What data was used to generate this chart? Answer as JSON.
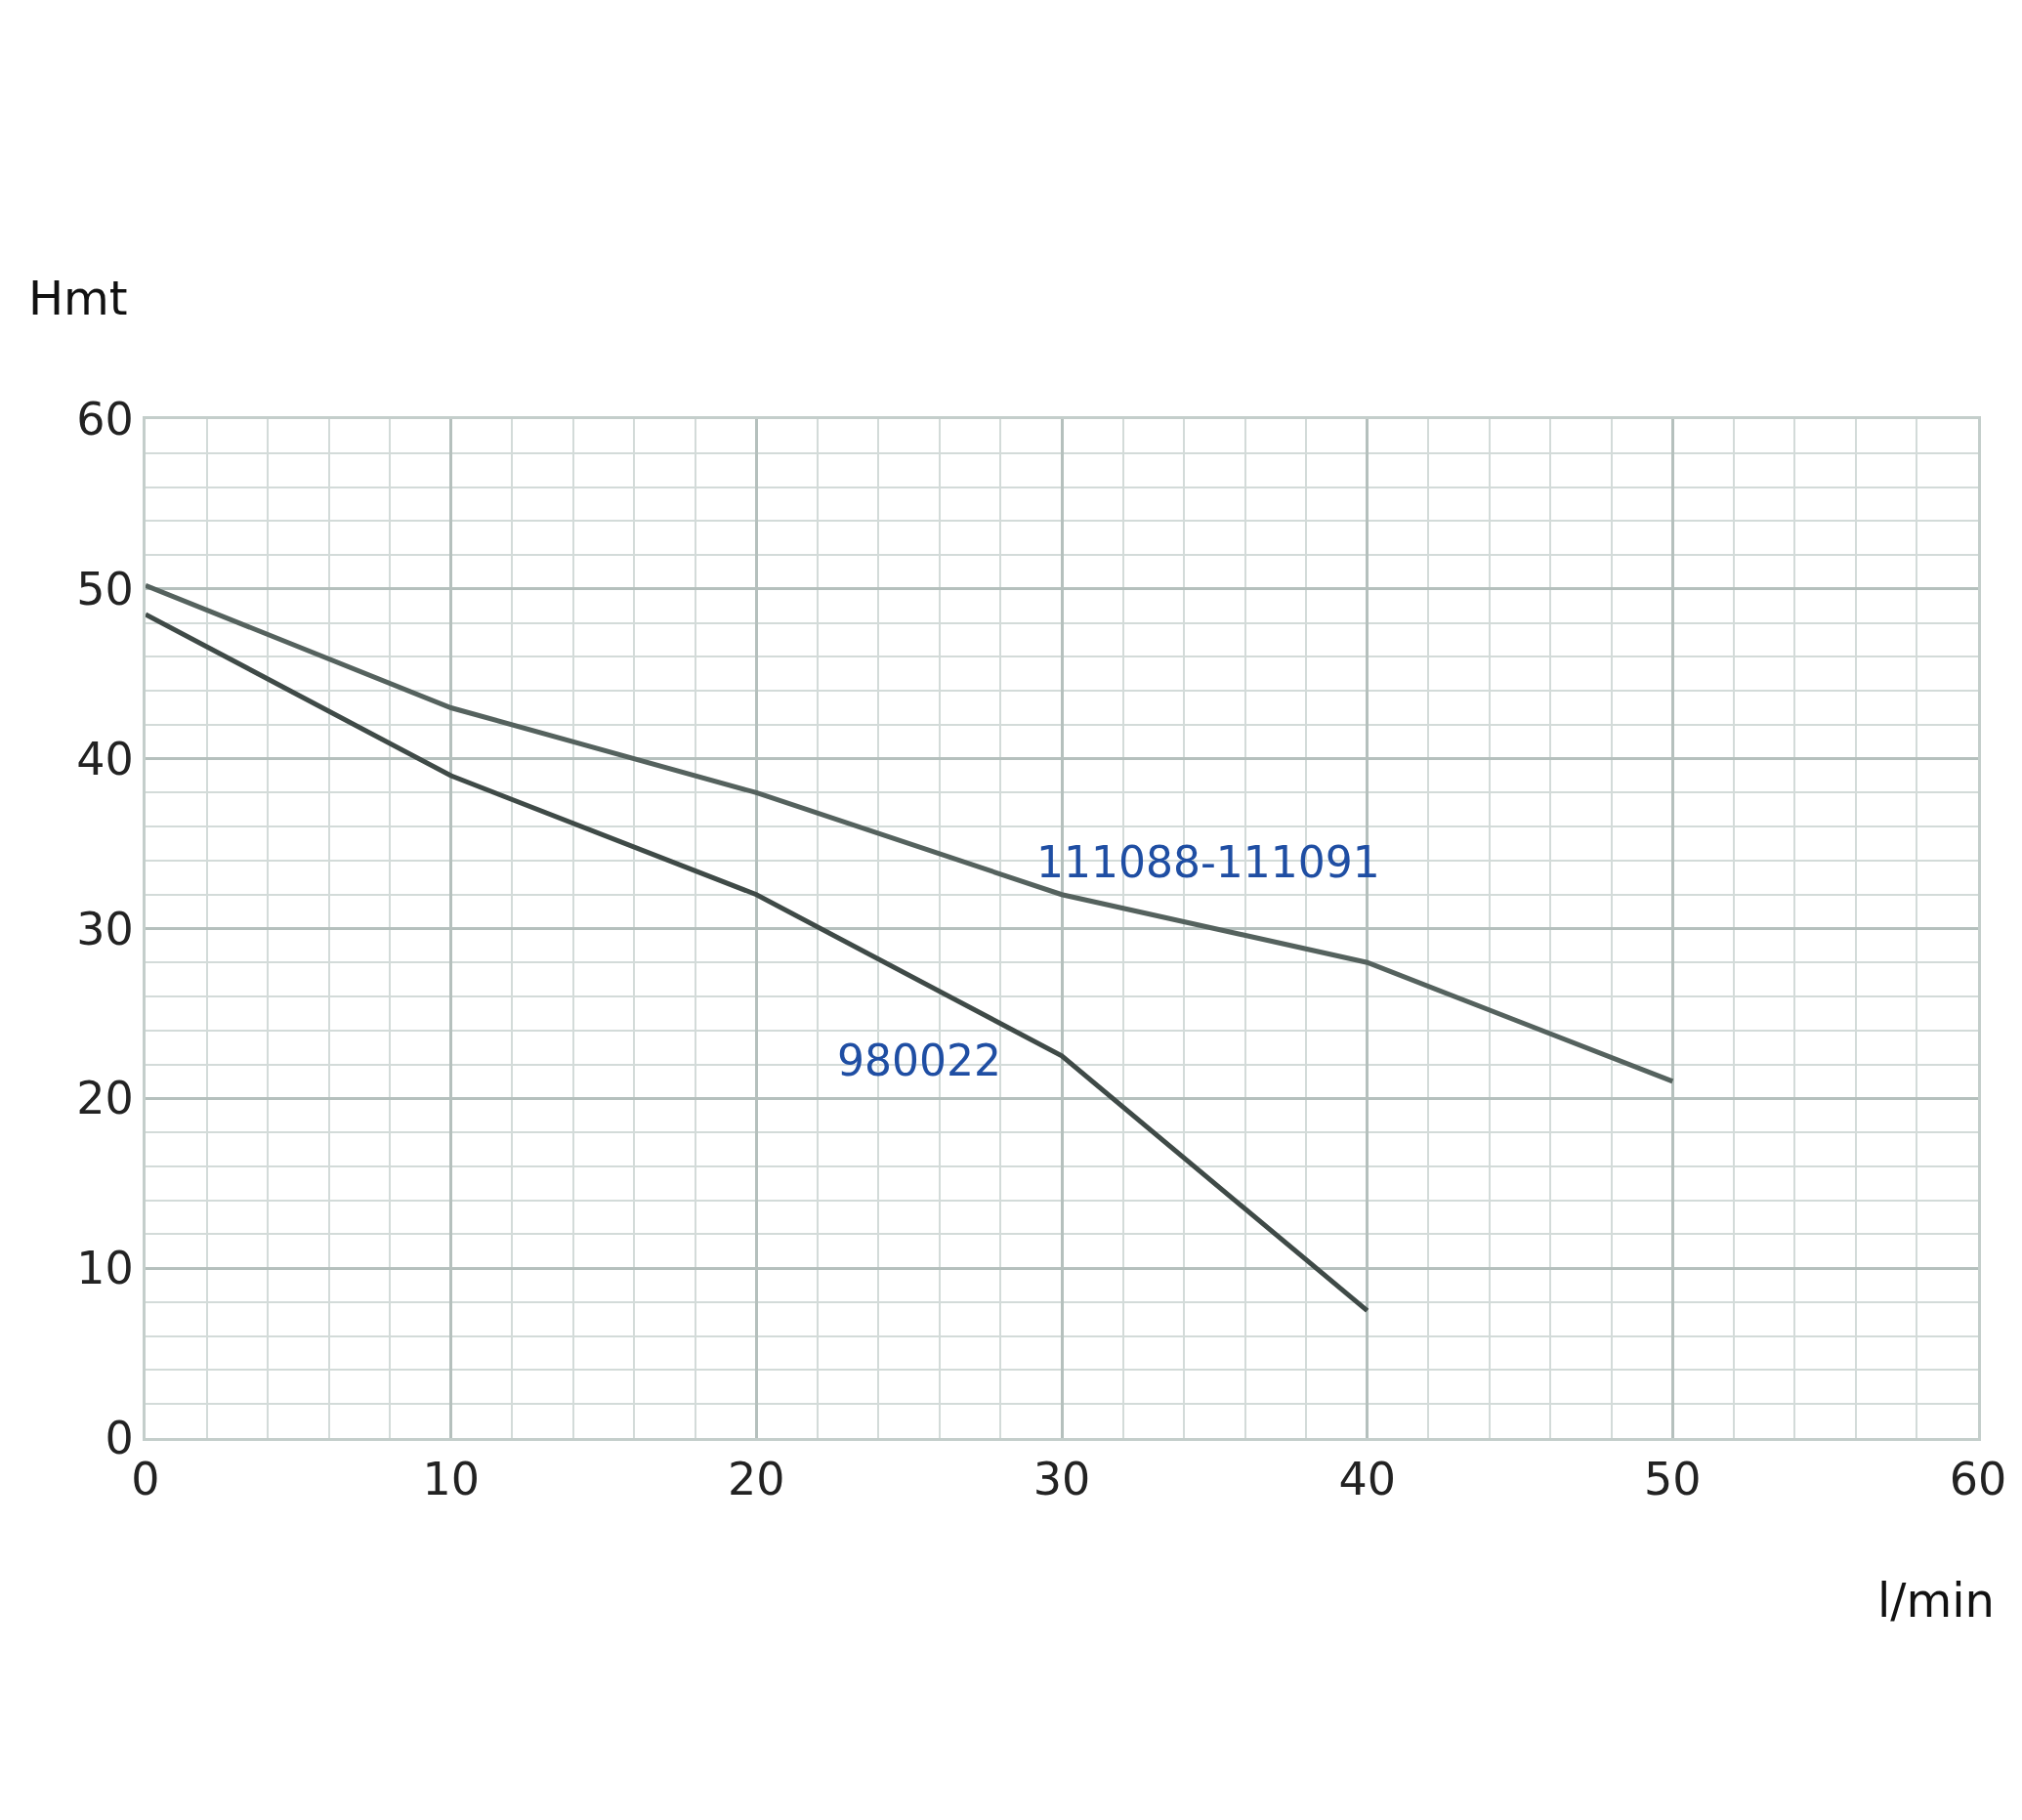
{
  "chart_data": {
    "type": "line",
    "xlabel": "l/min",
    "ylabel": "Hmt",
    "xlim": [
      0,
      60
    ],
    "xticks": [
      0,
      10,
      20,
      30,
      40,
      50,
      60
    ],
    "ylim": [
      0,
      60
    ],
    "yticks": [
      0,
      10,
      20,
      30,
      40,
      50,
      60
    ],
    "grid": true,
    "marker": "none",
    "line_style": "solid",
    "series": [
      {
        "name": "111088-111091",
        "color": "#55625e",
        "x": [
          0,
          10,
          20,
          30,
          40,
          50
        ],
        "values": [
          50.2,
          43,
          38,
          32,
          28,
          21
        ]
      },
      {
        "name": "980022",
        "color": "#3f4a47",
        "x": [
          0,
          10,
          20,
          30,
          40
        ],
        "values": [
          48.5,
          39,
          32,
          22.5,
          7.5
        ]
      }
    ]
  }
}
